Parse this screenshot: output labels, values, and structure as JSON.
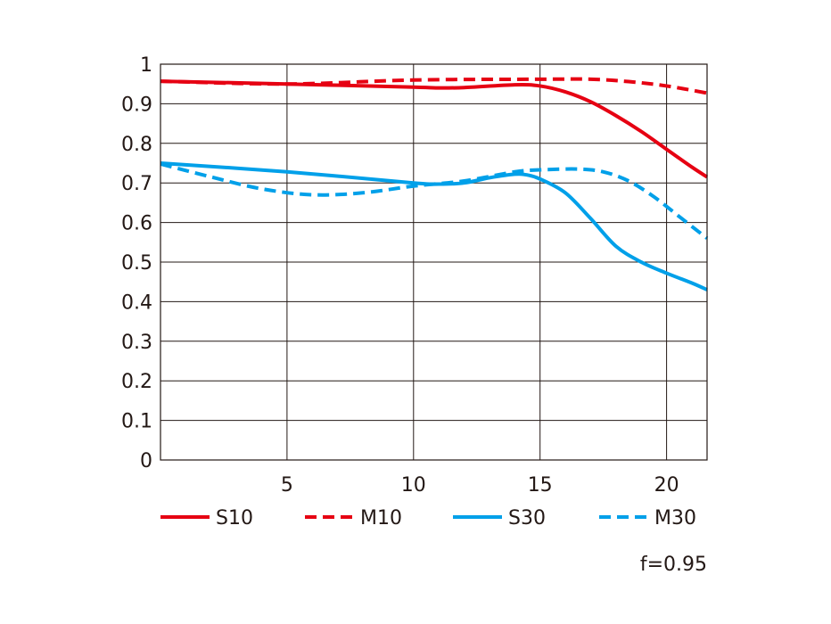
{
  "chart_data": {
    "type": "line",
    "title": "",
    "xlabel": "",
    "ylabel": "",
    "xlim": [
      0,
      21.6
    ],
    "ylim": [
      0,
      1
    ],
    "grid": true,
    "x_ticks": [
      "5",
      "10",
      "15",
      "20"
    ],
    "x_tick_values": [
      5,
      10,
      15,
      20
    ],
    "y_ticks": [
      "0",
      "0.1",
      "0.2",
      "0.3",
      "0.4",
      "0.5",
      "0.6",
      "0.7",
      "0.8",
      "0.9",
      "1"
    ],
    "y_tick_values": [
      0,
      0.1,
      0.2,
      0.3,
      0.4,
      0.5,
      0.6,
      0.7,
      0.8,
      0.9,
      1
    ],
    "legend_position": "bottom",
    "annotation": "f=0.95",
    "series": [
      {
        "name": "S10",
        "color": "#e60012",
        "dash": false,
        "x": [
          0,
          5,
          10,
          11,
          12,
          14,
          15,
          16,
          17,
          18,
          19,
          20,
          21,
          21.6
        ],
        "y": [
          0.957,
          0.95,
          0.942,
          0.94,
          0.941,
          0.948,
          0.945,
          0.93,
          0.905,
          0.87,
          0.83,
          0.785,
          0.74,
          0.715
        ]
      },
      {
        "name": "M10",
        "color": "#e60012",
        "dash": true,
        "x": [
          0,
          5,
          10,
          15,
          17,
          18.5,
          20,
          21.6
        ],
        "y": [
          0.957,
          0.95,
          0.96,
          0.962,
          0.962,
          0.956,
          0.945,
          0.927
        ]
      },
      {
        "name": "S30",
        "color": "#00a0e9",
        "dash": false,
        "x": [
          0,
          5,
          10,
          11,
          12,
          13,
          14,
          14.5,
          15,
          16,
          17,
          18,
          19,
          20,
          21,
          21.6
        ],
        "y": [
          0.75,
          0.728,
          0.7,
          0.697,
          0.7,
          0.713,
          0.722,
          0.72,
          0.71,
          0.675,
          0.61,
          0.54,
          0.5,
          0.472,
          0.447,
          0.43
        ]
      },
      {
        "name": "M30",
        "color": "#00a0e9",
        "dash": true,
        "x": [
          0,
          2,
          4,
          6,
          8,
          10,
          12,
          14,
          15,
          16.5,
          17.5,
          18.5,
          19.5,
          20.5,
          21.6
        ],
        "y": [
          0.748,
          0.715,
          0.685,
          0.67,
          0.675,
          0.692,
          0.705,
          0.728,
          0.733,
          0.735,
          0.728,
          0.705,
          0.665,
          0.615,
          0.56
        ]
      }
    ]
  }
}
